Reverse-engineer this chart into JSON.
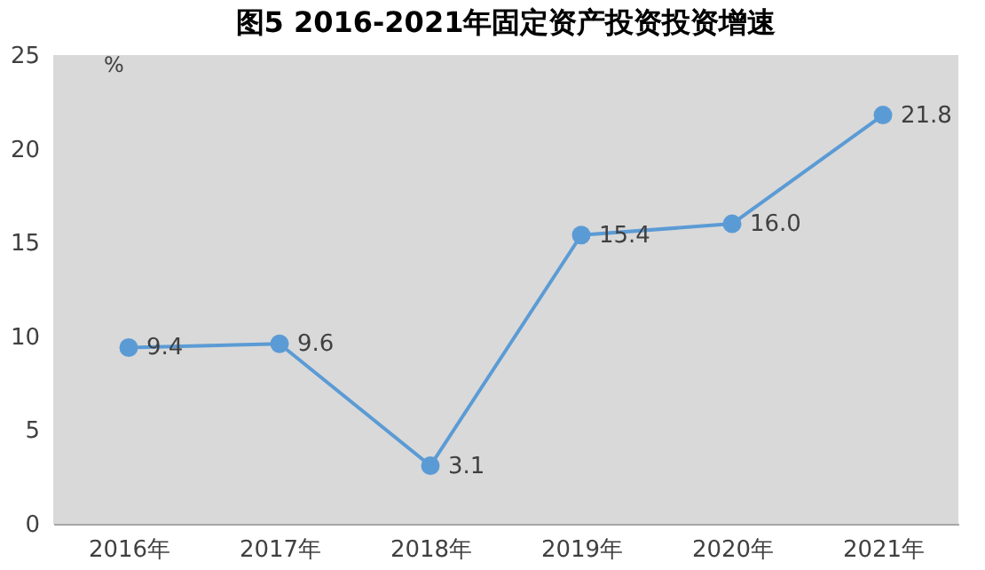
{
  "chart_data": {
    "type": "line",
    "title": "图5  2016-2021年固定资产投资投资增速",
    "ylabel": "%",
    "categories": [
      "2016年",
      "2017年",
      "2018年",
      "2019年",
      "2020年",
      "2021年"
    ],
    "series": [
      {
        "color": "#5b9bd5",
        "values": [
          9.4,
          9.6,
          3.1,
          15.4,
          16.0,
          21.8
        ],
        "value_labels": [
          "9.4",
          "9.6",
          "3.1",
          "15.4",
          "16.0",
          "21.8"
        ]
      }
    ],
    "ylim": [
      0,
      25
    ],
    "yticks": [
      0,
      5,
      10,
      15,
      20,
      25
    ],
    "grid": false,
    "legend": false,
    "marker": "circle",
    "line_style": "solid"
  }
}
